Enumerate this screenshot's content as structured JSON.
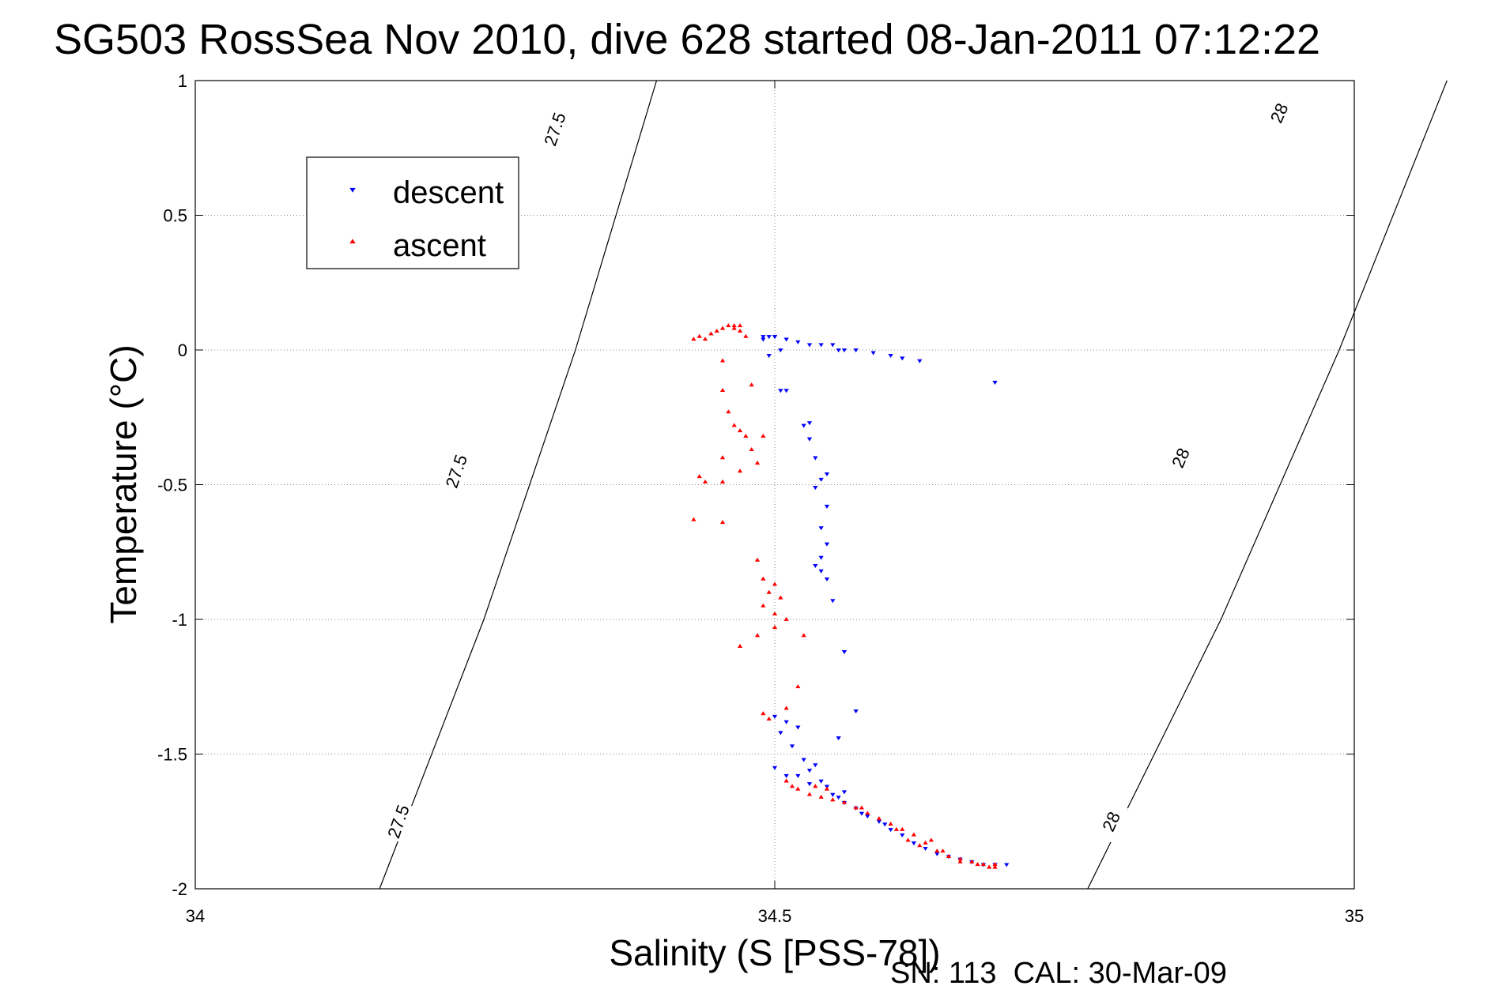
{
  "chart_data": {
    "type": "scatter",
    "title": "SG503 RossSea Nov 2010, dive 628 started 08-Jan-2011 07:12:22",
    "xlabel": "Salinity (S [PSS-78])",
    "ylabel": "Temperature (°C)",
    "xlim": [
      34,
      35
    ],
    "ylim": [
      -2,
      1
    ],
    "xticks": [
      "34",
      "34.5",
      "35"
    ],
    "yticks": [
      "1",
      "0.5",
      "0",
      "-0.5",
      "-1",
      "-1.5",
      "-2"
    ],
    "grid": true,
    "legend_position": "top-left",
    "footer": "SN: 113  CAL: 30-Mar-09",
    "isopycnals": [
      {
        "label": "27.5",
        "points": [
          [
            34.159,
            -2
          ],
          [
            34.249,
            -1
          ],
          [
            34.328,
            0
          ],
          [
            34.398,
            1
          ]
        ],
        "label_positions": [
          [
            34.175,
            -1.75
          ],
          [
            34.225,
            -0.45
          ],
          [
            34.31,
            0.82
          ]
        ]
      },
      {
        "label": "28",
        "points": [
          [
            34.77,
            -2
          ],
          [
            34.885,
            -1
          ],
          [
            34.987,
            0
          ],
          [
            35.08,
            1
          ]
        ],
        "label_positions": [
          [
            34.79,
            -1.75
          ],
          [
            34.85,
            -0.4
          ],
          [
            34.935,
            0.88
          ]
        ]
      }
    ],
    "series": [
      {
        "name": "descent",
        "color": "#0000ff",
        "marker": "triangle-down",
        "points": [
          [
            34.49,
            0.04
          ],
          [
            34.49,
            0.05
          ],
          [
            34.495,
            0.05
          ],
          [
            34.5,
            0.05
          ],
          [
            34.5,
            0.05
          ],
          [
            34.505,
            0.0
          ],
          [
            34.495,
            -0.02
          ],
          [
            34.51,
            0.04
          ],
          [
            34.52,
            0.03
          ],
          [
            34.53,
            0.02
          ],
          [
            34.54,
            0.02
          ],
          [
            34.55,
            0.02
          ],
          [
            34.555,
            0.0
          ],
          [
            34.56,
            0.0
          ],
          [
            34.57,
            0.0
          ],
          [
            34.585,
            -0.01
          ],
          [
            34.6,
            -0.02
          ],
          [
            34.61,
            -0.03
          ],
          [
            34.625,
            -0.04
          ],
          [
            34.69,
            -0.12
          ],
          [
            34.505,
            -0.15
          ],
          [
            34.51,
            -0.15
          ],
          [
            34.525,
            -0.28
          ],
          [
            34.53,
            -0.27
          ],
          [
            34.53,
            -0.33
          ],
          [
            34.535,
            -0.4
          ],
          [
            34.54,
            -0.48
          ],
          [
            34.535,
            -0.51
          ],
          [
            34.545,
            -0.46
          ],
          [
            34.545,
            -0.58
          ],
          [
            34.54,
            -0.66
          ],
          [
            34.545,
            -0.72
          ],
          [
            34.54,
            -0.77
          ],
          [
            34.535,
            -0.8
          ],
          [
            34.54,
            -0.82
          ],
          [
            34.545,
            -0.85
          ],
          [
            34.55,
            -0.93
          ],
          [
            34.56,
            -1.12
          ],
          [
            34.57,
            -1.34
          ],
          [
            34.555,
            -1.44
          ],
          [
            34.5,
            -1.36
          ],
          [
            34.505,
            -1.42
          ],
          [
            34.51,
            -1.38
          ],
          [
            34.515,
            -1.47
          ],
          [
            34.52,
            -1.4
          ],
          [
            34.5,
            -1.55
          ],
          [
            34.525,
            -1.52
          ],
          [
            34.51,
            -1.58
          ],
          [
            34.53,
            -1.56
          ],
          [
            34.535,
            -1.54
          ],
          [
            34.54,
            -1.6
          ],
          [
            34.545,
            -1.62
          ],
          [
            34.55,
            -1.65
          ],
          [
            34.555,
            -1.66
          ],
          [
            34.56,
            -1.68
          ],
          [
            34.57,
            -1.7
          ],
          [
            34.575,
            -1.72
          ],
          [
            34.58,
            -1.73
          ],
          [
            34.59,
            -1.75
          ],
          [
            34.6,
            -1.78
          ],
          [
            34.61,
            -1.8
          ],
          [
            34.62,
            -1.83
          ],
          [
            34.63,
            -1.85
          ],
          [
            34.64,
            -1.87
          ],
          [
            34.65,
            -1.88
          ],
          [
            34.66,
            -1.89
          ],
          [
            34.67,
            -1.9
          ],
          [
            34.68,
            -1.91
          ],
          [
            34.69,
            -1.91
          ],
          [
            34.7,
            -1.91
          ],
          [
            34.52,
            -1.58
          ],
          [
            34.53,
            -1.61
          ],
          [
            34.56,
            -1.64
          ],
          [
            34.595,
            -1.76
          ]
        ]
      },
      {
        "name": "ascent",
        "color": "#ff0000",
        "marker": "triangle-up",
        "points": [
          [
            34.43,
            0.04
          ],
          [
            34.435,
            0.05
          ],
          [
            34.44,
            0.04
          ],
          [
            34.445,
            0.06
          ],
          [
            34.45,
            0.07
          ],
          [
            34.455,
            0.08
          ],
          [
            34.46,
            0.09
          ],
          [
            34.465,
            0.08
          ],
          [
            34.47,
            0.07
          ],
          [
            34.475,
            0.05
          ],
          [
            34.47,
            0.09
          ],
          [
            34.465,
            0.09
          ],
          [
            34.455,
            -0.04
          ],
          [
            34.48,
            -0.13
          ],
          [
            34.455,
            -0.15
          ],
          [
            34.46,
            -0.23
          ],
          [
            34.465,
            -0.28
          ],
          [
            34.47,
            -0.3
          ],
          [
            34.475,
            -0.32
          ],
          [
            34.48,
            -0.37
          ],
          [
            34.485,
            -0.42
          ],
          [
            34.47,
            -0.45
          ],
          [
            34.455,
            -0.4
          ],
          [
            34.49,
            -0.32
          ],
          [
            34.435,
            -0.47
          ],
          [
            34.44,
            -0.49
          ],
          [
            34.455,
            -0.49
          ],
          [
            34.43,
            -0.63
          ],
          [
            34.455,
            -0.64
          ],
          [
            34.485,
            -0.78
          ],
          [
            34.49,
            -0.85
          ],
          [
            34.495,
            -0.9
          ],
          [
            34.5,
            -0.87
          ],
          [
            34.505,
            -0.92
          ],
          [
            34.49,
            -0.95
          ],
          [
            34.5,
            -0.98
          ],
          [
            34.51,
            -1.0
          ],
          [
            34.5,
            -1.03
          ],
          [
            34.485,
            -1.06
          ],
          [
            34.47,
            -1.1
          ],
          [
            34.525,
            -1.06
          ],
          [
            34.52,
            -1.25
          ],
          [
            34.49,
            -1.35
          ],
          [
            34.495,
            -1.37
          ],
          [
            34.51,
            -1.33
          ],
          [
            34.51,
            -1.6
          ],
          [
            34.515,
            -1.62
          ],
          [
            34.52,
            -1.63
          ],
          [
            34.53,
            -1.65
          ],
          [
            34.54,
            -1.66
          ],
          [
            34.55,
            -1.67
          ],
          [
            34.56,
            -1.68
          ],
          [
            34.57,
            -1.7
          ],
          [
            34.58,
            -1.72
          ],
          [
            34.59,
            -1.74
          ],
          [
            34.6,
            -1.76
          ],
          [
            34.61,
            -1.78
          ],
          [
            34.62,
            -1.8
          ],
          [
            34.63,
            -1.83
          ],
          [
            34.64,
            -1.86
          ],
          [
            34.65,
            -1.88
          ],
          [
            34.66,
            -1.89
          ],
          [
            34.67,
            -1.9
          ],
          [
            34.68,
            -1.91
          ],
          [
            34.69,
            -1.92
          ],
          [
            34.69,
            -1.91
          ],
          [
            34.535,
            -1.62
          ],
          [
            34.545,
            -1.63
          ],
          [
            34.575,
            -1.7
          ],
          [
            34.605,
            -1.78
          ],
          [
            34.615,
            -1.82
          ],
          [
            34.625,
            -1.84
          ],
          [
            34.635,
            -1.82
          ],
          [
            34.645,
            -1.86
          ],
          [
            34.66,
            -1.9
          ],
          [
            34.675,
            -1.91
          ],
          [
            34.685,
            -1.92
          ]
        ]
      }
    ]
  }
}
